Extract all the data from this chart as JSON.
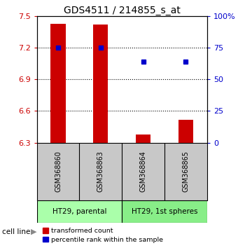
{
  "title": "GDS4511 / 214855_s_at",
  "samples": [
    "GSM368860",
    "GSM368863",
    "GSM368864",
    "GSM368865"
  ],
  "bar_values": [
    7.43,
    7.42,
    6.38,
    6.52
  ],
  "bar_bottom": 6.3,
  "blue_dot_values": [
    7.2,
    7.2,
    7.07,
    7.07
  ],
  "ylim_left": [
    6.3,
    7.5
  ],
  "ylim_right": [
    0,
    100
  ],
  "yticks_left": [
    6.3,
    6.6,
    6.9,
    7.2,
    7.5
  ],
  "yticks_right": [
    0,
    25,
    50,
    75,
    100
  ],
  "ytick_labels_left": [
    "6.3",
    "6.6",
    "6.9",
    "7.2",
    "7.5"
  ],
  "ytick_labels_right": [
    "0",
    "25",
    "50",
    "75",
    "100%"
  ],
  "hlines": [
    6.6,
    6.9,
    7.2
  ],
  "bar_color": "#cc0000",
  "dot_color": "#0000cc",
  "cell_lines": [
    {
      "label": "HT29, parental",
      "samples": [
        0,
        1
      ],
      "color": "#aaffaa"
    },
    {
      "label": "HT29, 1st spheres",
      "samples": [
        2,
        3
      ],
      "color": "#88ee88"
    }
  ],
  "sample_bg_color": "#c8c8c8",
  "bar_width": 0.35,
  "legend_red_label": "transformed count",
  "legend_blue_label": "percentile rank within the sample",
  "cell_line_label": "cell line",
  "background_color": "#ffffff"
}
